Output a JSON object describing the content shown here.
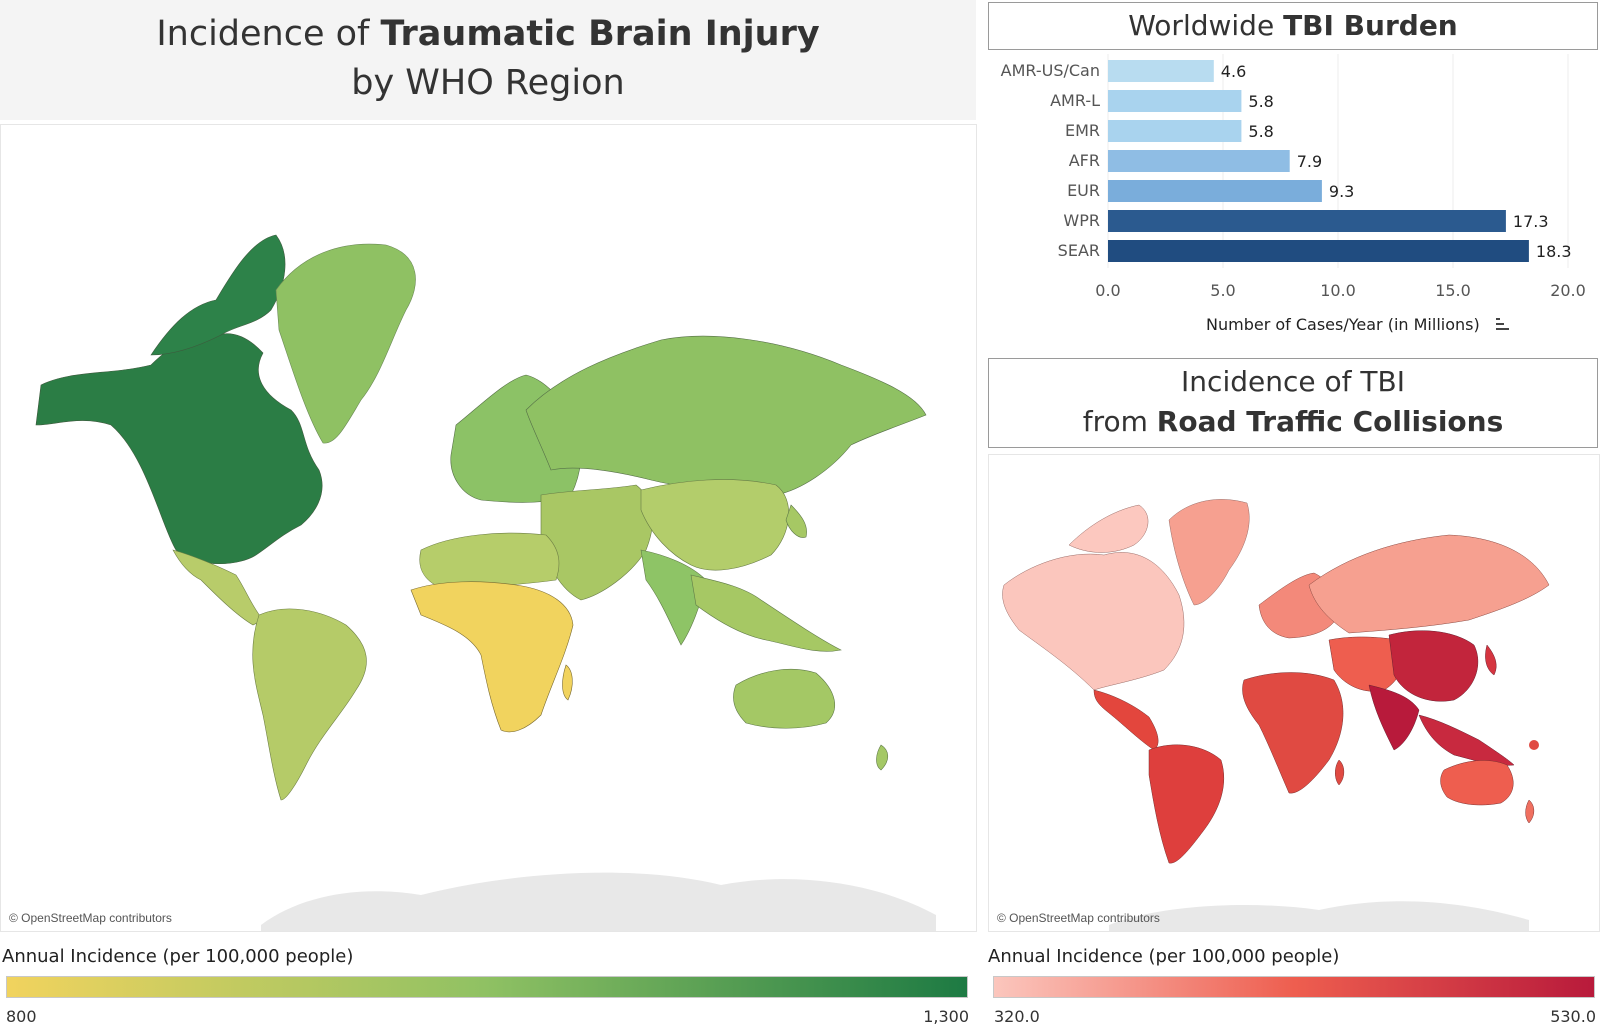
{
  "main_title": {
    "pre": "Incidence of ",
    "bold": "Traumatic Brain Injury",
    "line2": "by WHO Region"
  },
  "map_left": {
    "attribution": "© OpenStreetMap contributors",
    "legend_title": "Annual Incidence (per 100,000 people)",
    "legend_min": "800",
    "legend_max": "1,300",
    "colors": {
      "low": "#f1d35e",
      "mid": "#8fc163",
      "high": "#1d7a43"
    }
  },
  "map_right": {
    "title_line1": "Incidence of TBI",
    "title_pre": "from ",
    "title_bold": "Road Traffic Collisions",
    "attribution": "© OpenStreetMap contributors",
    "legend_title": "Annual Incidence (per 100,000 people)",
    "legend_min": "320.0",
    "legend_max": "530.0",
    "colors": {
      "low": "#fbc6bd",
      "mid": "#ee5e4f",
      "high": "#b81a3b"
    }
  },
  "bar_chart_title": {
    "pre": "Worldwide ",
    "bold": "TBI Burden"
  },
  "chart_data": [
    {
      "type": "bar",
      "orientation": "horizontal",
      "title": "Worldwide TBI Burden",
      "categories": [
        "AMR-US/Can",
        "AMR-L",
        "EMR",
        "AFR",
        "EUR",
        "WPR",
        "SEAR"
      ],
      "values": [
        4.6,
        5.8,
        5.8,
        7.9,
        9.3,
        17.3,
        18.3
      ],
      "value_labels": [
        "4.6",
        "5.8",
        "5.8",
        "7.9",
        "9.3",
        "17.3",
        "18.3"
      ],
      "xlabel": "Number of Cases/Year (in Millions)",
      "xlim": [
        0,
        20
      ],
      "xticks": [
        "0.0",
        "5.0",
        "10.0",
        "15.0",
        "20.0"
      ],
      "grid": true,
      "bar_colors": [
        "#b8dcf0",
        "#a9d3ee",
        "#a9d3ee",
        "#8fbde4",
        "#7aaddb",
        "#2b5a8f",
        "#204c80"
      ]
    },
    {
      "type": "heatmap",
      "title": "Incidence of Traumatic Brain Injury by WHO Region",
      "colorbar_label": "Annual Incidence (per 100,000 people)",
      "colorbar_range": [
        800,
        1300
      ]
    },
    {
      "type": "heatmap",
      "title": "Incidence of TBI from Road Traffic Collisions",
      "colorbar_label": "Annual Incidence (per 100,000 people)",
      "colorbar_range": [
        320,
        530
      ]
    }
  ]
}
